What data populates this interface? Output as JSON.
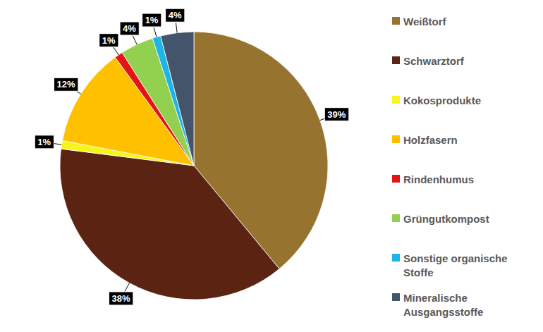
{
  "chart_data": {
    "type": "pie",
    "categories": [
      "Weißtorf",
      "Schwarztorf",
      "Kokosprodukte",
      "Holzfasern",
      "Rindenhumus",
      "Grüngutkompost",
      "Sonstige organische Stoffe",
      "Mineralische Ausgangsstoffe"
    ],
    "values": [
      39,
      38,
      1,
      12,
      1,
      4,
      1,
      4
    ],
    "value_labels": [
      "39%",
      "38%",
      "1%",
      "12%",
      "1%",
      "4%",
      "1%",
      "4%"
    ],
    "colors": [
      "#977330",
      "#5a2312",
      "#f7f51e",
      "#ffc000",
      "#e31414",
      "#92d050",
      "#1eb4e6",
      "#44546a"
    ],
    "data_labels": true,
    "legend": "right"
  }
}
